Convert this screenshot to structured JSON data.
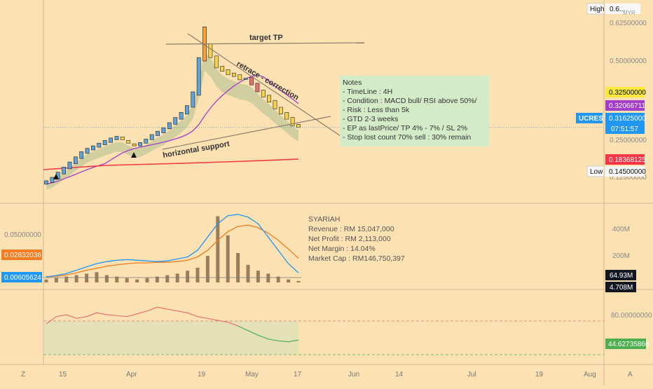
{
  "chart": {
    "symbol": "UCREST",
    "currency": "MYR",
    "timeframe": "4H"
  },
  "price_axis": {
    "ticks": [
      "0.62500000",
      "0.50000000",
      "0.37500000",
      "0.25000000",
      "0.12500000"
    ],
    "high_label": "High",
    "high_value": "0.6...",
    "low_label": "Low",
    "low_value": "0.14500000",
    "badges": [
      {
        "value": "0.32500000",
        "color": "#F9E93A",
        "text_color": "#000000"
      },
      {
        "value": "0.32066711",
        "color": "#A43DC9",
        "text_color": "#FFFFFF"
      },
      {
        "value": "0.31625000",
        "color": "#2196F3",
        "text_color": "#FFFFFF"
      },
      {
        "value": "07:51:57",
        "color": "#2196F3",
        "text_color": "#FFFFFF"
      },
      {
        "value": "0.18368125",
        "color": "#F23645",
        "text_color": "#FFFFFF"
      }
    ]
  },
  "annotations": {
    "target_label": "target TP",
    "retrace_label": "retrace - correction",
    "support_label": "horizontal support"
  },
  "notes": {
    "title": "Notes",
    "lines": [
      "- TimeLine : 4H",
      "- Condition : MACD bull/ RSI above 50%/",
      "- Risk : Less than 5k",
      "- GTD 2-3 weeks",
      "- EP as lastPrice/ TP 4% - 7% / SL 2%",
      "- Stop lost count 70% sell : 30% remain"
    ]
  },
  "fundamentals": {
    "title": "SYARIAH",
    "lines": [
      "Revenue : RM 15,047,000",
      "Net Profit : RM 2,113,000",
      "Net Margin : 14.04%",
      "Market Cap : RM146,750,397"
    ]
  },
  "macd_panel": {
    "left_tick": "0.05000000",
    "left_badges": [
      {
        "value": "0.02832036",
        "color": "#F57C20"
      },
      {
        "value": "0.00605624",
        "color": "#2196F3"
      }
    ],
    "right_ticks": [
      "400M",
      "200M"
    ],
    "right_badges": [
      {
        "value": "64.93M",
        "color": "#131722"
      },
      {
        "value": "4.708M",
        "color": "#131722"
      }
    ]
  },
  "rsi_panel": {
    "right_tick": "80.00000000",
    "badge": {
      "value": "44.62735866",
      "color": "#4CAF50"
    }
  },
  "time_axis": {
    "left_letter": "Z",
    "right_letter": "A",
    "labels": [
      "15",
      "Apr",
      "19",
      "May",
      "17",
      "Jun",
      "14",
      "Jul",
      "19",
      "Aug"
    ]
  },
  "chart_data": {
    "type": "candlestick",
    "series_note": "price",
    "candles": [
      {
        "o": 0.15,
        "c": 0.16
      },
      {
        "o": 0.155,
        "c": 0.17
      },
      {
        "o": 0.165,
        "c": 0.185
      },
      {
        "o": 0.18,
        "c": 0.2
      },
      {
        "o": 0.195,
        "c": 0.215
      },
      {
        "o": 0.21,
        "c": 0.23
      },
      {
        "o": 0.225,
        "c": 0.245
      },
      {
        "o": 0.24,
        "c": 0.255
      },
      {
        "o": 0.25,
        "c": 0.262
      },
      {
        "o": 0.258,
        "c": 0.27
      },
      {
        "o": 0.265,
        "c": 0.278
      },
      {
        "o": 0.272,
        "c": 0.285
      },
      {
        "o": 0.28,
        "c": 0.29
      },
      {
        "o": 0.288,
        "c": 0.28
      },
      {
        "o": 0.278,
        "c": 0.27
      },
      {
        "o": 0.268,
        "c": 0.262
      },
      {
        "o": 0.262,
        "c": 0.272
      },
      {
        "o": 0.27,
        "c": 0.282
      },
      {
        "o": 0.28,
        "c": 0.295
      },
      {
        "o": 0.292,
        "c": 0.305
      },
      {
        "o": 0.3,
        "c": 0.315
      },
      {
        "o": 0.312,
        "c": 0.33
      },
      {
        "o": 0.325,
        "c": 0.345
      },
      {
        "o": 0.34,
        "c": 0.36
      },
      {
        "o": 0.355,
        "c": 0.38
      },
      {
        "o": 0.375,
        "c": 0.42
      },
      {
        "o": 0.41,
        "c": 0.52
      },
      {
        "o": 0.51,
        "c": 0.61
      },
      {
        "o": 0.56,
        "c": 0.52
      },
      {
        "o": 0.525,
        "c": 0.49
      },
      {
        "o": 0.495,
        "c": 0.48
      },
      {
        "o": 0.485,
        "c": 0.47
      },
      {
        "o": 0.475,
        "c": 0.465
      },
      {
        "o": 0.47,
        "c": 0.455
      },
      {
        "o": 0.46,
        "c": 0.46
      },
      {
        "o": 0.462,
        "c": 0.44
      },
      {
        "o": 0.445,
        "c": 0.42
      },
      {
        "o": 0.425,
        "c": 0.405
      },
      {
        "o": 0.41,
        "c": 0.39
      },
      {
        "o": 0.395,
        "c": 0.37
      },
      {
        "o": 0.375,
        "c": 0.355
      },
      {
        "o": 0.36,
        "c": 0.34
      },
      {
        "o": 0.345,
        "c": 0.32
      },
      {
        "o": 0.325,
        "c": 0.316
      }
    ],
    "macd": {
      "macd_line": [
        0.0,
        0.002,
        0.005,
        0.01,
        0.015,
        0.02,
        0.023,
        0.025,
        0.026,
        0.025,
        0.024,
        0.023,
        0.024,
        0.027,
        0.03,
        0.04,
        0.06,
        0.08,
        0.092,
        0.094,
        0.09,
        0.08,
        0.06,
        0.04,
        0.02,
        0.006
      ],
      "signal_line": [
        0.0,
        0.001,
        0.003,
        0.006,
        0.01,
        0.013,
        0.016,
        0.018,
        0.02,
        0.021,
        0.021,
        0.022,
        0.022,
        0.023,
        0.025,
        0.03,
        0.04,
        0.055,
        0.068,
        0.076,
        0.078,
        0.074,
        0.066,
        0.055,
        0.042,
        0.028
      ]
    },
    "volume_histogram": [
      2,
      3,
      4,
      5,
      6,
      7,
      5,
      4,
      3,
      2,
      3,
      4,
      5,
      6,
      8,
      10,
      18,
      45,
      32,
      20,
      12,
      8,
      6,
      4,
      2,
      1
    ],
    "rsi": [
      62,
      70,
      72,
      68,
      70,
      74,
      72,
      71,
      70,
      73,
      76,
      80,
      78,
      76,
      74,
      70,
      68,
      66,
      64,
      60,
      55,
      50,
      46,
      44,
      43,
      45
    ]
  }
}
